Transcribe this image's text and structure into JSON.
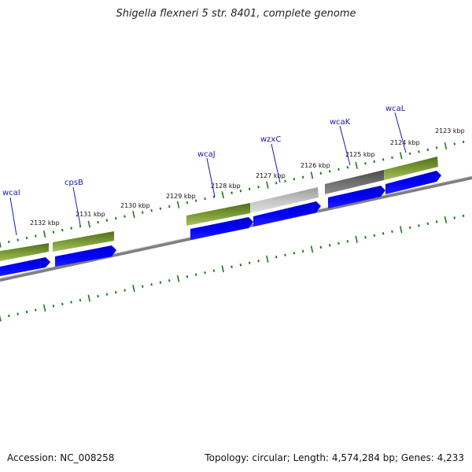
{
  "title": "Shigella flexneri 5 str. 8401, complete genome",
  "accession": "Accession: NC_008258",
  "summary": "Topology: circular; Length: 4,574,284 bp; Genes: 4,233",
  "colors": {
    "backbone": "#8a8a8a",
    "tick": "#1f7a1f",
    "cds": "#0000ee",
    "gene_green": "#6b8f2a",
    "gene_grey_light": "#b8b8b8",
    "gene_grey_dark": "#6a6a6a",
    "label": "#1a1aa8"
  },
  "ruler_labels": [
    "2132 kbp",
    "2131 kbp",
    "2130 kbp",
    "2129 kbp",
    "2128 kbp",
    "2127 kbp",
    "2126 kbp",
    "2125 kbp",
    "2124 kbp",
    "2123 kbp"
  ],
  "genes": [
    {
      "name": "wcaI",
      "color": "gene_green"
    },
    {
      "name": "cpsB",
      "color": "gene_green"
    },
    {
      "name": "wcaJ",
      "color": "gene_green"
    },
    {
      "name": "wzxC",
      "color": "gene_grey_light"
    },
    {
      "name": "wcaK",
      "color": "gene_grey_dark"
    },
    {
      "name": "wcaL",
      "color": "gene_green"
    }
  ]
}
